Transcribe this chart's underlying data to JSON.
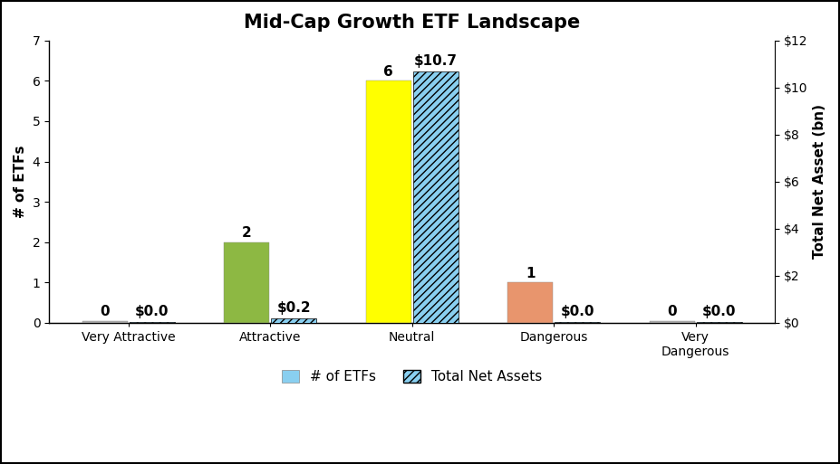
{
  "title": "Mid-Cap Growth ETF Landscape",
  "categories": [
    "Very Attractive",
    "Attractive",
    "Neutral",
    "Dangerous",
    "Very\nDangerous"
  ],
  "etf_counts": [
    0,
    2,
    6,
    1,
    0
  ],
  "etf_display_heights": [
    0.05,
    2,
    6,
    1,
    0.05
  ],
  "total_assets": [
    0.0,
    0.2,
    10.7,
    0.0,
    0.0
  ],
  "total_assets_display": [
    0.02,
    0.2,
    10.7,
    0.02,
    0.02
  ],
  "etf_labels": [
    "0",
    "2",
    "6",
    "1",
    "0"
  ],
  "asset_labels": [
    "$0.0",
    "$0.2",
    "$10.7",
    "$0.0",
    "$0.0"
  ],
  "bar_colors_etf": [
    "#b0b0b0",
    "#8db843",
    "#ffff00",
    "#e8956d",
    "#b0b0b0"
  ],
  "bar_color_assets": "#89cff0",
  "hatch_color": "black",
  "hatch_pattern": "////",
  "ylabel_left": "# of ETFs",
  "ylabel_right": "Total Net Asset (bn)",
  "ylim_left": [
    0,
    7
  ],
  "ylim_right": [
    0,
    12
  ],
  "yticks_left": [
    0,
    1,
    2,
    3,
    4,
    5,
    6,
    7
  ],
  "yticks_right": [
    0,
    2,
    4,
    6,
    8,
    10,
    12
  ],
  "ytick_labels_right": [
    "$0",
    "$2",
    "$4",
    "$6",
    "$8",
    "$10",
    "$12"
  ],
  "bar_width": 0.32,
  "background_color": "#ffffff",
  "legend_labels": [
    "# of ETFs",
    "Total Net Assets"
  ],
  "legend_etf_color": "#89cff0",
  "title_fontsize": 15,
  "label_fontsize": 11,
  "tick_fontsize": 10,
  "annotation_fontsize": 11
}
